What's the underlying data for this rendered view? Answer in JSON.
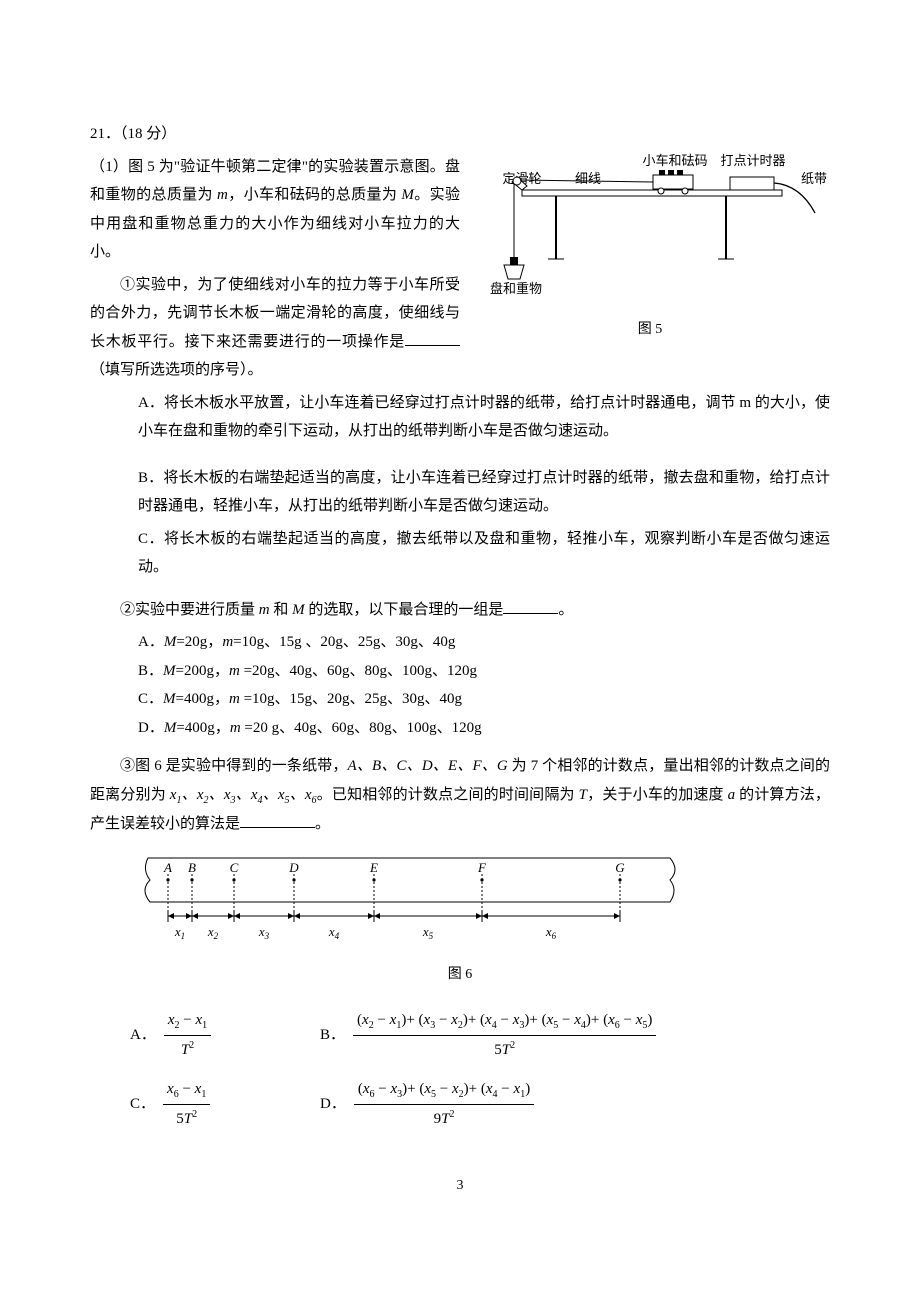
{
  "page_number": "3",
  "question": {
    "number": "21．",
    "points": "（18 分）",
    "part1_lead": "（1）图 5 为\"验证牛顿第二定律\"的实验装置示意图。盘和重物的总质量为 ",
    "part1_lead2": "，小车和砝码的总质量为 ",
    "part1_lead3": "。实验中用盘和重物总重力的大小作为细线对小车拉力的大小。",
    "m": "m",
    "M": "M",
    "sub1": {
      "circled": "①",
      "text_a": "实验中，为了使细线对小车的拉力等于小车所受的合外力，先调节长木板一端定滑轮的高度，使细线与长木板平行。接下来还需要进行的一项操作是",
      "text_b": "（填写所选选项的序号）。",
      "optA": "A．将长木板水平放置，让小车连着已经穿过打点计时器的纸带，给打点计时器通电，调节 m 的大小，使小车在盘和重物的牵引下运动，从打出的纸带判断小车是否做匀速运动。",
      "optB": "B．将长木板的右端垫起适当的高度，让小车连着已经穿过打点计时器的纸带，撤去盘和重物，给打点计时器通电，轻推小车，从打出的纸带判断小车是否做匀速运动。",
      "optC": "C．将长木板的右端垫起适当的高度，撤去纸带以及盘和重物，轻推小车，观察判断小车是否做匀速运动。"
    },
    "sub2": {
      "circled": "②",
      "text": "实验中要进行质量 m 和 M 的选取，以下最合理的一组是",
      "optA": "A．M=20g，m=10g、15g 、20g、25g、30g、40g",
      "optB": "B．M=200g，m =20g、40g、60g、80g、100g、120g",
      "optC": "C．M=400g，m =10g、15g、20g、25g、30g、40g",
      "optD": "D．M=400g，m =20 g、40g、60g、80g、100g、120g"
    },
    "sub3": {
      "circled": "③",
      "text_a": "图 6 是实验中得到的一条纸带，",
      "pts": "A、B、C、D、E、F、G",
      "text_b": " 为 7 个相邻的计数点，量出相邻的计数点之间的距离分别为 ",
      "xs": "x₁、x₂、x₃、x₄、x₅、x₆",
      "text_c": "。已知相邻的计数点之间的时间间隔为 ",
      "T": "T",
      "text_d": "，关于小车的加速度 ",
      "a": "a",
      "text_e": " 的计算方法，产生误差较小的算法是",
      "tail": "。"
    }
  },
  "fig5": {
    "caption": "图 5",
    "labels": {
      "pulley": "定滑轮",
      "string": "细线",
      "cart": "小车和砝码",
      "timer": "打点计时器",
      "tape": "纸带",
      "pan": "盘和重物"
    },
    "colors": {
      "stroke": "#000000",
      "fill_light": "#ffffff"
    }
  },
  "fig6": {
    "caption": "图 6",
    "points": [
      "A",
      "B",
      "C",
      "D",
      "E",
      "F",
      "G"
    ],
    "point_x": [
      38,
      62,
      104,
      164,
      244,
      352,
      490
    ],
    "dist_labels": [
      "x₁",
      "x₂",
      "x₃",
      "x₄",
      "x₅",
      "x₆"
    ],
    "colors": {
      "stroke": "#000000"
    }
  },
  "formulas": {
    "A": {
      "label": "A．",
      "num": "x₂ − x₁",
      "den": "T²"
    },
    "B": {
      "label": "B．",
      "num": "(x₂ − x₁)+ (x₃ − x₂)+ (x₄ − x₃)+ (x₅ − x₄)+ (x₆ − x₅)",
      "den": "5T²"
    },
    "C": {
      "label": "C．",
      "num": "x₆ − x₁",
      "den": "5T²"
    },
    "D": {
      "label": "D．",
      "num": "(x₆ − x₃)+ (x₅ − x₂)+ (x₄ − x₁)",
      "den": "9T²"
    }
  }
}
